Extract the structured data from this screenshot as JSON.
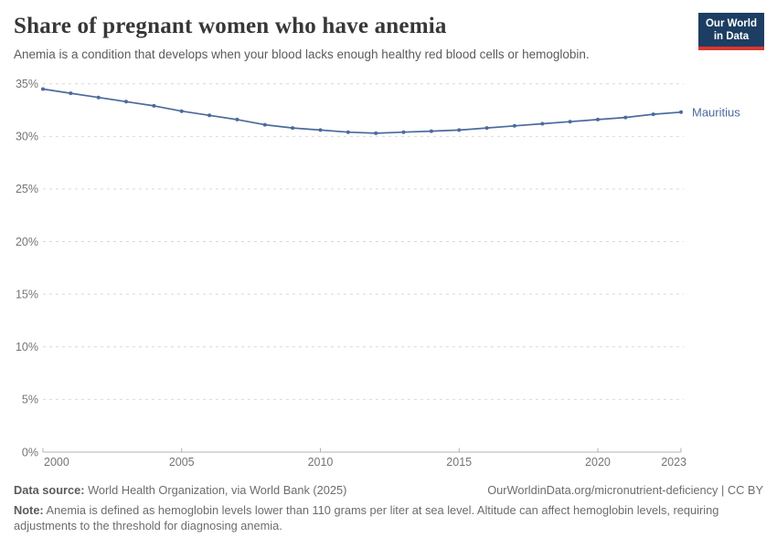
{
  "header": {
    "title": "Share of pregnant women who have anemia",
    "subtitle": "Anemia is a condition that develops when your blood lacks enough healthy red blood cells or hemoglobin.",
    "logo": {
      "line1": "Our World",
      "line2": "in Data"
    }
  },
  "chart_data": {
    "type": "line",
    "title": "Share of pregnant women who have anemia",
    "x": [
      2000,
      2001,
      2002,
      2003,
      2004,
      2005,
      2006,
      2007,
      2008,
      2009,
      2010,
      2011,
      2012,
      2013,
      2014,
      2015,
      2016,
      2017,
      2018,
      2019,
      2020,
      2021,
      2022,
      2023
    ],
    "series": [
      {
        "name": "Mauritius",
        "color": "#4C6A9C",
        "values": [
          34.5,
          34.1,
          33.7,
          33.3,
          32.9,
          32.4,
          32.0,
          31.6,
          31.1,
          30.8,
          30.6,
          30.4,
          30.3,
          30.4,
          30.5,
          30.6,
          30.8,
          31.0,
          31.2,
          31.4,
          31.6,
          31.8,
          32.1,
          32.3
        ]
      }
    ],
    "xlabel": "",
    "ylabel": "",
    "xlim": [
      2000,
      2023
    ],
    "ylim": [
      0,
      35
    ],
    "x_ticks": [
      2000,
      2005,
      2010,
      2015,
      2020,
      2023
    ],
    "y_ticks": [
      0,
      5,
      10,
      15,
      20,
      25,
      30,
      35
    ],
    "y_tick_suffix": "%",
    "grid": "horizontal-dashed",
    "legend_position": "end-of-line-label",
    "end_label": "Mauritius"
  },
  "chart_style": {
    "grid_color": "#d9d9d9",
    "axis_color": "#b3b3b3",
    "tick_label_color": "#757575"
  },
  "footer": {
    "data_source_label": "Data source:",
    "data_source": " World Health Organization, via World Bank (2025)",
    "link": "OurWorldinData.org/micronutrient-deficiency | CC BY",
    "note_label": "Note:",
    "note": " Anemia is defined as hemoglobin levels lower than 110 grams per liter at sea level. Altitude can affect hemoglobin levels, requiring adjustments to the threshold for diagnosing anemia."
  }
}
